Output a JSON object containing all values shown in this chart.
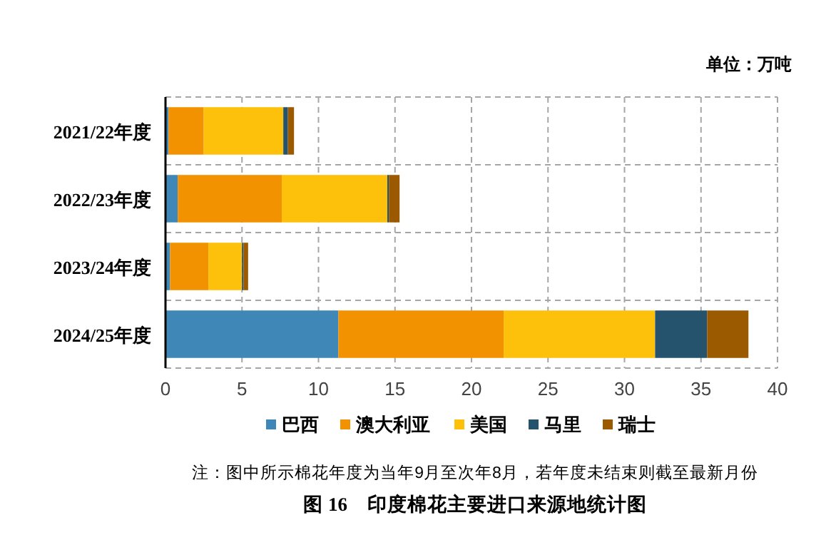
{
  "chart_data": {
    "type": "bar",
    "orientation": "horizontal",
    "stacked": true,
    "title": "图 16　印度棉花主要进口来源地统计图",
    "annotations": [
      "单位：万吨",
      "注：图中所示棉花年度为当年9月至次年8月，若年度未结束则截至最新月份"
    ],
    "categories": [
      "2021/22年度",
      "2022/23年度",
      "2023/24年度",
      "2024/25年度"
    ],
    "series": [
      {
        "name": "巴西",
        "color": "#3f87b7",
        "values": [
          0.2,
          0.8,
          0.3,
          11.3
        ]
      },
      {
        "name": "澳大利亚",
        "color": "#f39200",
        "values": [
          2.3,
          6.8,
          2.5,
          10.8
        ]
      },
      {
        "name": "美国",
        "color": "#fdc10c",
        "values": [
          5.2,
          6.9,
          2.2,
          9.9
        ]
      },
      {
        "name": "马里",
        "color": "#25536e",
        "values": [
          0.3,
          0.1,
          0.1,
          3.4
        ]
      },
      {
        "name": "瑞士",
        "color": "#9c5a00",
        "values": [
          0.4,
          0.7,
          0.3,
          2.7
        ]
      }
    ],
    "xlim": [
      0,
      40
    ],
    "xticks": [
      0,
      5,
      10,
      15,
      20,
      25,
      30,
      35,
      40
    ],
    "grid": true,
    "legend": "bottom"
  }
}
